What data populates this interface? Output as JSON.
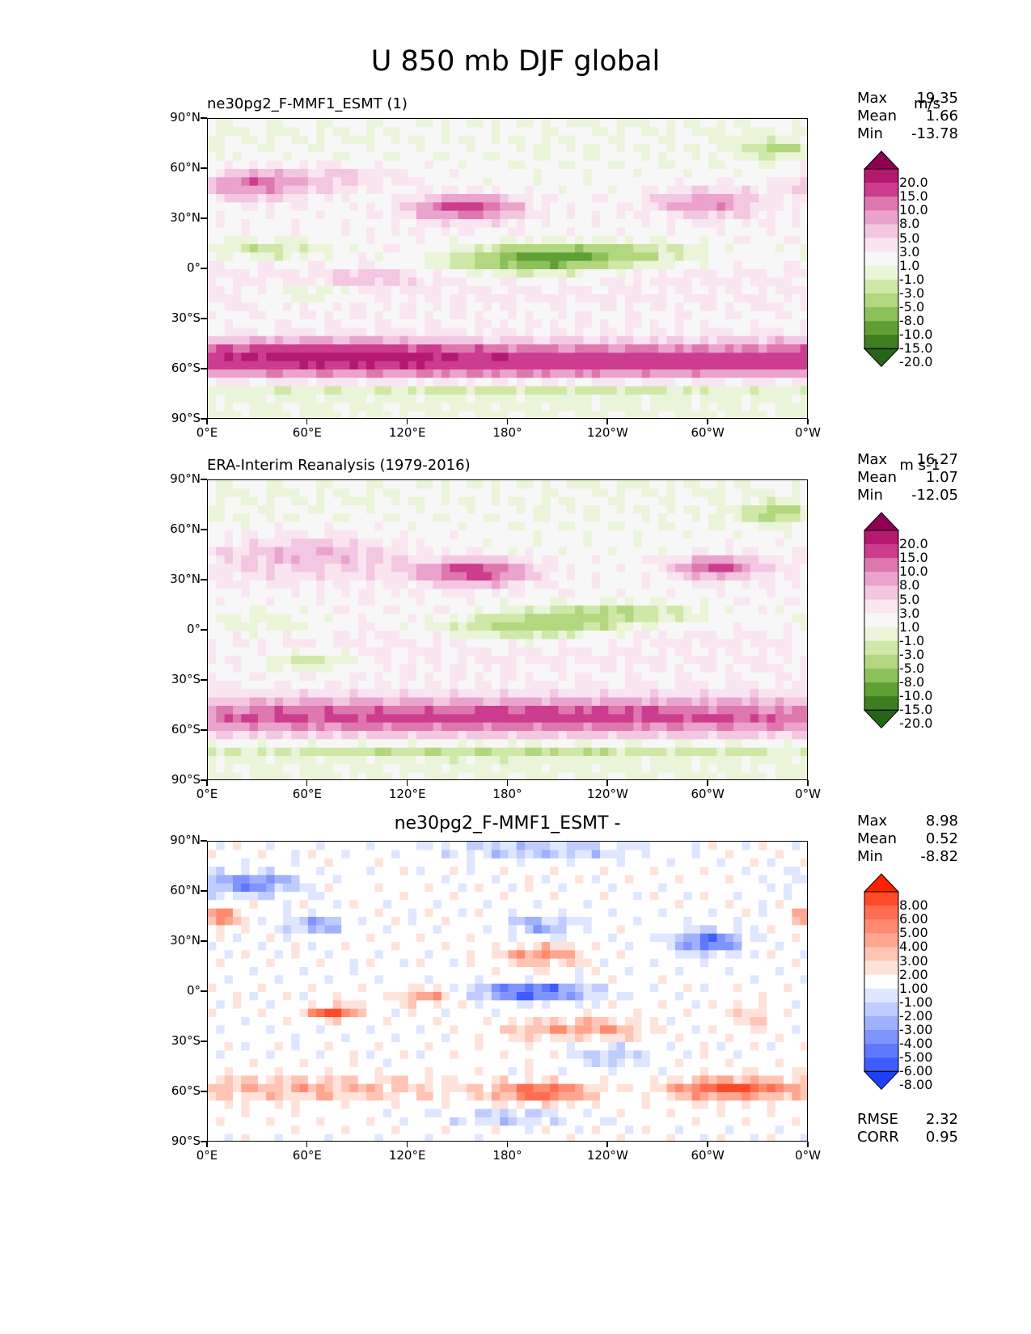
{
  "figure_title": "U 850 mb DJF global",
  "panels": [
    {
      "title_left": "ne30pg2_F-MMF1_ESMT (1)",
      "title_right": "m/s",
      "title_center": "",
      "stats": [
        {
          "label": "Max",
          "value": "19.35"
        },
        {
          "label": "Mean",
          "value": "1.66"
        },
        {
          "label": "Min",
          "value": "-13.78"
        }
      ],
      "colorbar_labels": [
        "20.0",
        "15.0",
        "10.0",
        "8.0",
        "5.0",
        "3.0",
        "1.0",
        "-1.0",
        "-3.0",
        "-5.0",
        "-8.0",
        "-10.0",
        "-15.0",
        "-20.0"
      ],
      "colormap": "piyg",
      "footer": []
    },
    {
      "title_left": "ERA-Interim Reanalysis (1979-2016)",
      "title_right": "m s-1",
      "title_center": "",
      "stats": [
        {
          "label": "Max",
          "value": "16.27"
        },
        {
          "label": "Mean",
          "value": "1.07"
        },
        {
          "label": "Min",
          "value": "-12.05"
        }
      ],
      "colorbar_labels": [
        "20.0",
        "15.0",
        "10.0",
        "8.0",
        "5.0",
        "3.0",
        "1.0",
        "-1.0",
        "-3.0",
        "-5.0",
        "-8.0",
        "-10.0",
        "-15.0",
        "-20.0"
      ],
      "colormap": "piyg",
      "footer": []
    },
    {
      "title_left": "",
      "title_right": "",
      "title_center": "ne30pg2_F-MMF1_ESMT -",
      "stats": [
        {
          "label": "Max",
          "value": "8.98"
        },
        {
          "label": "Mean",
          "value": "0.52"
        },
        {
          "label": "Min",
          "value": "-8.82"
        }
      ],
      "colorbar_labels": [
        "8.00",
        "6.00",
        "5.00",
        "4.00",
        "3.00",
        "2.00",
        "1.00",
        "-1.00",
        "-2.00",
        "-3.00",
        "-4.00",
        "-5.00",
        "-6.00",
        "-8.00"
      ],
      "colormap": "bwr",
      "footer": [
        {
          "label": "RMSE",
          "value": "2.32"
        },
        {
          "label": "CORR",
          "value": "0.95"
        }
      ]
    }
  ],
  "axes": {
    "y_ticks": [
      "90°N",
      "60°N",
      "30°N",
      "0°",
      "30°S",
      "60°S",
      "90°S"
    ],
    "x_ticks": [
      "0°E",
      "60°E",
      "120°E",
      "180°",
      "120°W",
      "60°W",
      "0°W"
    ]
  },
  "colors": {
    "piyg": [
      "#8e0152",
      "#b5186f",
      "#cc3c8f",
      "#de77ae",
      "#eaa3cc",
      "#f3c6e1",
      "#f9e5f0",
      "#f7f7f7",
      "#eaf4d9",
      "#cfe8a8",
      "#b2d77e",
      "#8cc05b",
      "#5f9f34",
      "#3d7e21",
      "#276419"
    ],
    "bwr": [
      "#ff2000",
      "#ff4a2a",
      "#ff6e50",
      "#ff8a70",
      "#ffa690",
      "#ffc4b4",
      "#ffe3da",
      "#ffffff",
      "#dfe6ff",
      "#c0ccff",
      "#9fb0ff",
      "#7f94ff",
      "#5f78ff",
      "#3f5cff",
      "#1f3fff"
    ]
  },
  "chart_data": [
    {
      "type": "heatmap",
      "title": "U 850 mb DJF global",
      "subtitle": "ne30pg2_F-MMF1_ESMT (1)",
      "units": "m/s",
      "x_ticks": [
        "0°E",
        "60°E",
        "120°E",
        "180°",
        "120°W",
        "60°W",
        "0°W"
      ],
      "y_ticks": [
        "90°N",
        "60°N",
        "30°N",
        "0°",
        "30°S",
        "60°S",
        "90°S"
      ],
      "levels": [
        -20,
        -15,
        -10,
        -8,
        -5,
        -3,
        -1,
        1,
        3,
        5,
        8,
        10,
        15,
        20
      ],
      "stats": {
        "max": 19.35,
        "mean": 1.66,
        "min": -13.78
      },
      "features": [
        {
          "lon": 180,
          "lat": -55,
          "dlon": 380,
          "dlat": 10,
          "value": 15
        },
        {
          "lon": 60,
          "lat": -50,
          "dlon": 80,
          "dlat": 9,
          "value": 5
        },
        {
          "lon": 155,
          "lat": 37,
          "dlon": 30,
          "dlat": 7,
          "value": 13
        },
        {
          "lon": 300,
          "lat": 40,
          "dlon": 30,
          "dlat": 8,
          "value": 8
        },
        {
          "lon": 25,
          "lat": 50,
          "dlon": 30,
          "dlat": 8,
          "value": 8
        },
        {
          "lon": 195,
          "lat": 5,
          "dlon": 50,
          "dlat": 8,
          "value": -10
        },
        {
          "lon": 240,
          "lat": 10,
          "dlon": 60,
          "dlat": 7,
          "value": -6
        },
        {
          "lon": 35,
          "lat": 12,
          "dlon": 40,
          "dlat": 6,
          "value": -5
        },
        {
          "lon": 95,
          "lat": -5,
          "dlon": 25,
          "dlat": 4,
          "value": 4
        },
        {
          "lon": 70,
          "lat": 55,
          "dlon": 50,
          "dlat": 8,
          "value": 4
        },
        {
          "lon": 100,
          "lat": 28,
          "dlon": 20,
          "dlat": 6,
          "value": 0
        },
        {
          "lon": 250,
          "lat": 38,
          "dlon": 12,
          "dlat": 6,
          "value": 0
        },
        {
          "lon": 340,
          "lat": 72,
          "dlon": 20,
          "dlat": 6,
          "value": -5
        },
        {
          "lon": 60,
          "lat": -15,
          "dlon": 25,
          "dlat": 5,
          "value": -4
        },
        {
          "lon": 180,
          "lat": -72,
          "dlon": 200,
          "dlat": 4,
          "value": -3
        }
      ]
    },
    {
      "type": "heatmap",
      "title": "U 850 mb DJF global",
      "subtitle": "ERA-Interim Reanalysis (1979-2016)",
      "units": "m s-1",
      "x_ticks": [
        "0°E",
        "60°E",
        "120°E",
        "180°",
        "120°W",
        "60°W",
        "0°W"
      ],
      "y_ticks": [
        "90°N",
        "60°N",
        "30°N",
        "0°",
        "30°S",
        "60°S",
        "90°S"
      ],
      "levels": [
        -20,
        -15,
        -10,
        -8,
        -5,
        -3,
        -1,
        1,
        3,
        5,
        8,
        10,
        15,
        20
      ],
      "stats": {
        "max": 16.27,
        "mean": 1.07,
        "min": -12.05
      },
      "features": [
        {
          "lon": 180,
          "lat": -52,
          "dlon": 380,
          "dlat": 11,
          "value": 12
        },
        {
          "lon": 160,
          "lat": 35,
          "dlon": 32,
          "dlat": 7,
          "value": 12
        },
        {
          "lon": 305,
          "lat": 38,
          "dlon": 25,
          "dlat": 6,
          "value": 11
        },
        {
          "lon": 60,
          "lat": 45,
          "dlon": 60,
          "dlat": 12,
          "value": 5
        },
        {
          "lon": 190,
          "lat": 2,
          "dlon": 50,
          "dlat": 8,
          "value": -7
        },
        {
          "lon": 245,
          "lat": 10,
          "dlon": 55,
          "dlat": 7,
          "value": -6
        },
        {
          "lon": 30,
          "lat": 5,
          "dlon": 40,
          "dlat": 10,
          "value": -3
        },
        {
          "lon": 60,
          "lat": -18,
          "dlon": 30,
          "dlat": 6,
          "value": -5
        },
        {
          "lon": 180,
          "lat": -72,
          "dlon": 200,
          "dlat": 4,
          "value": -4
        },
        {
          "lon": 340,
          "lat": 70,
          "dlon": 20,
          "dlat": 6,
          "value": -6
        }
      ]
    },
    {
      "type": "heatmap",
      "title": "ne30pg2_F-MMF1_ESMT -",
      "x_ticks": [
        "0°E",
        "60°E",
        "120°E",
        "180°",
        "120°W",
        "60°W",
        "0°W"
      ],
      "y_ticks": [
        "90°N",
        "60°N",
        "30°N",
        "0°",
        "30°S",
        "60°S",
        "90°S"
      ],
      "levels": [
        -8,
        -6,
        -5,
        -4,
        -3,
        -2,
        -1,
        1,
        2,
        3,
        4,
        5,
        6,
        8
      ],
      "stats": {
        "max": 8.98,
        "mean": 0.52,
        "min": -8.82,
        "rmse": 2.32,
        "corr": 0.95
      },
      "features": [
        {
          "lon": 200,
          "lat": -60,
          "dlon": 30,
          "dlat": 6,
          "value": 6
        },
        {
          "lon": 310,
          "lat": -58,
          "dlon": 35,
          "dlat": 6,
          "value": 6
        },
        {
          "lon": 60,
          "lat": -58,
          "dlon": 90,
          "dlat": 8,
          "value": 3
        },
        {
          "lon": 75,
          "lat": -12,
          "dlon": 15,
          "dlat": 4,
          "value": 7
        },
        {
          "lon": 130,
          "lat": -3,
          "dlon": 15,
          "dlat": 5,
          "value": 4
        },
        {
          "lon": 195,
          "lat": 0,
          "dlon": 35,
          "dlat": 5,
          "value": -7
        },
        {
          "lon": 200,
          "lat": 22,
          "dlon": 25,
          "dlat": 6,
          "value": 4
        },
        {
          "lon": 300,
          "lat": 30,
          "dlon": 20,
          "dlat": 7,
          "value": -6
        },
        {
          "lon": 200,
          "lat": 40,
          "dlon": 20,
          "dlat": 5,
          "value": -4
        },
        {
          "lon": 25,
          "lat": 65,
          "dlon": 30,
          "dlat": 7,
          "value": -5
        },
        {
          "lon": 5,
          "lat": 45,
          "dlon": 15,
          "dlat": 6,
          "value": 5
        },
        {
          "lon": 65,
          "lat": 40,
          "dlon": 20,
          "dlat": 5,
          "value": -4
        },
        {
          "lon": 200,
          "lat": -22,
          "dlon": 30,
          "dlat": 6,
          "value": 3
        },
        {
          "lon": 240,
          "lat": -22,
          "dlon": 25,
          "dlat": 6,
          "value": 3
        },
        {
          "lon": 240,
          "lat": -38,
          "dlon": 20,
          "dlat": 6,
          "value": -3
        },
        {
          "lon": 200,
          "lat": 85,
          "dlon": 60,
          "dlat": 5,
          "value": -3
        },
        {
          "lon": 180,
          "lat": -75,
          "dlon": 40,
          "dlat": 4,
          "value": -3
        },
        {
          "lon": 325,
          "lat": -15,
          "dlon": 15,
          "dlat": 10,
          "value": 2
        }
      ]
    }
  ]
}
